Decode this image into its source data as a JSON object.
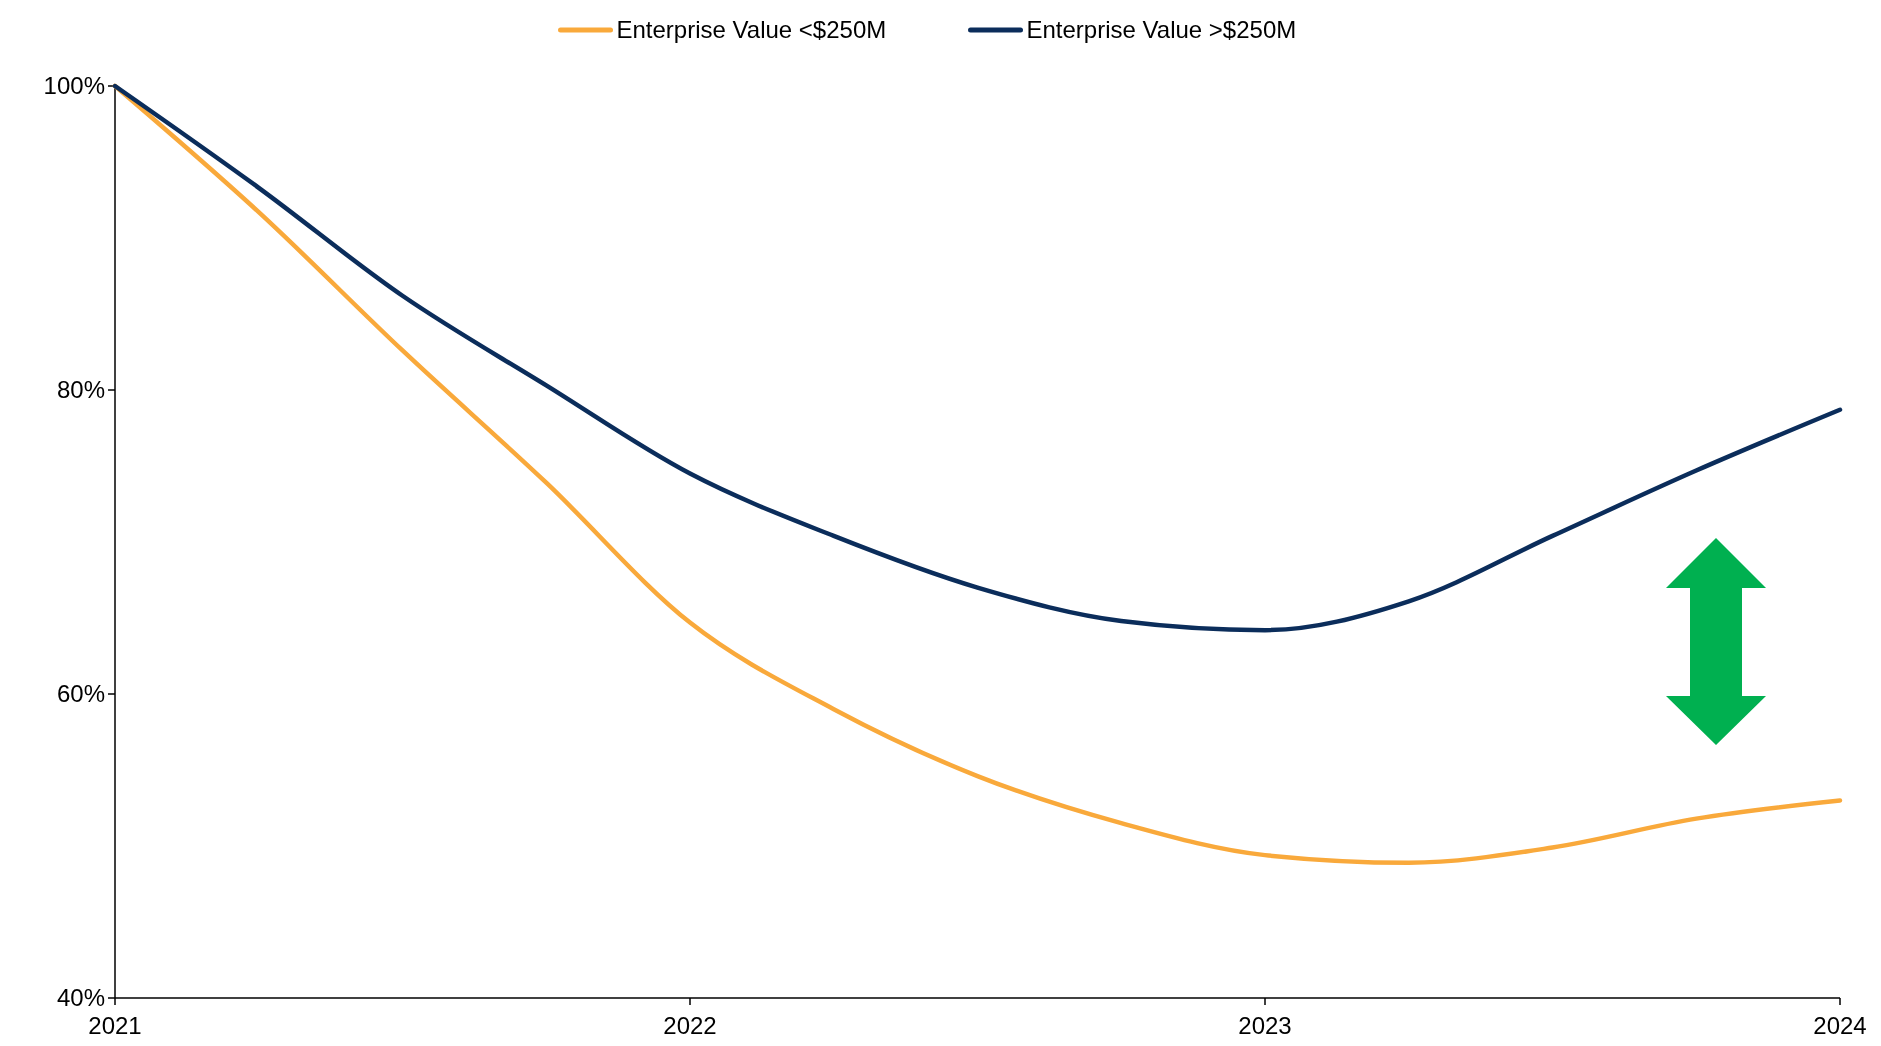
{
  "chart_data": {
    "type": "line",
    "x": [
      2021,
      2021.25,
      2021.5,
      2021.75,
      2022,
      2022.25,
      2022.5,
      2022.75,
      2023,
      2023.25,
      2023.5,
      2023.75,
      2024
    ],
    "series": [
      {
        "name": "Enterprise Value <$250M",
        "color": "#f9a93b",
        "values": [
          100,
          91.7,
          82.6,
          73.9,
          64.7,
          59.0,
          54.6,
          51.5,
          49.4,
          48.9,
          49.9,
          51.8,
          53.0
        ]
      },
      {
        "name": "Enterprise Value >$250M",
        "color": "#0b2d5b",
        "values": [
          100,
          93.3,
          86.2,
          80.3,
          74.5,
          70.4,
          67.0,
          64.8,
          64.2,
          66.1,
          70.4,
          74.7,
          78.7
        ]
      }
    ],
    "xlim": [
      2021,
      2024
    ],
    "xticks": [
      2021,
      2022,
      2023,
      2024
    ],
    "ylim": [
      40,
      100
    ],
    "yticks": [
      {
        "value": 40,
        "label": "40%"
      },
      {
        "value": 60,
        "label": "60%"
      },
      {
        "value": 80,
        "label": "80%"
      },
      {
        "value": 100,
        "label": "100%"
      }
    ],
    "legend": "top",
    "grid": false,
    "marker": "none",
    "line_style": "solid"
  }
}
